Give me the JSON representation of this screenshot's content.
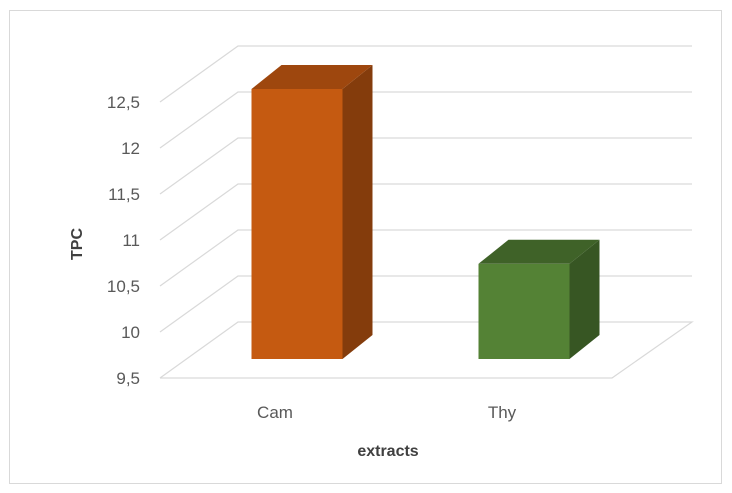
{
  "chart_data": {
    "type": "bar",
    "style": "3d-column",
    "title": "",
    "xlabel": "extracts",
    "ylabel": "TPC",
    "categories": [
      "Cam",
      "Thy"
    ],
    "values": [
      12.5,
      10.6
    ],
    "ylim": [
      9.5,
      12.5
    ],
    "yticks": [
      "9,5",
      "10",
      "10,5",
      "11",
      "11,5",
      "12",
      "12,5"
    ],
    "grid": true,
    "legend": "none",
    "colors": {
      "Cam": {
        "front": "#c55a11",
        "side": "#843c0c",
        "top": "#9e470e"
      },
      "Thy": {
        "front": "#548235",
        "side": "#375623",
        "top": "#3f6228"
      }
    }
  }
}
